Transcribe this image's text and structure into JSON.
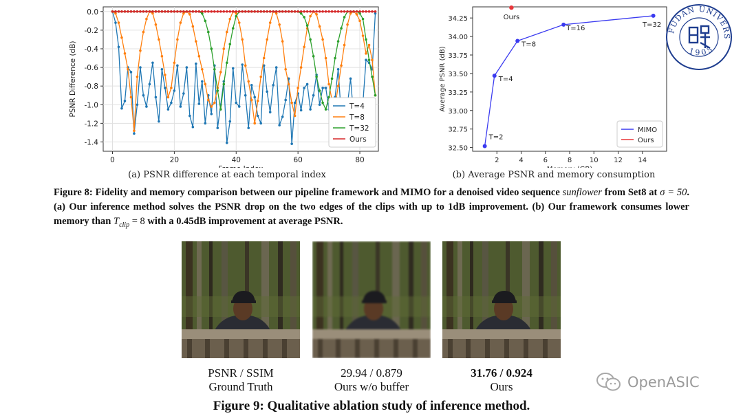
{
  "chart_data": [
    {
      "type": "line",
      "title": "",
      "xlabel": "Frame Index",
      "ylabel": "PSNR Difference (dB)",
      "xlim": [
        -3,
        86
      ],
      "ylim": [
        -1.5,
        0.05
      ],
      "xticks": [
        "0",
        "20",
        "40",
        "60",
        "80"
      ],
      "yticks": [
        "0.0",
        "-0.2",
        "-0.4",
        "-0.6",
        "-0.8",
        "-1.0",
        "-1.2",
        "-1.4"
      ],
      "grid": true,
      "legend": "bottom-right",
      "series": [
        {
          "name": "T=4",
          "color": "#1f77b4",
          "values": [
            0,
            -0.12,
            -0.38,
            -1.04,
            -0.96,
            -0.6,
            -0.65,
            -1.31,
            -1.0,
            -0.6,
            -0.9,
            -1.02,
            -0.78,
            -0.55,
            -0.92,
            -1.18,
            -0.62,
            -0.82,
            -1.05,
            -0.98,
            -0.85,
            -0.58,
            -1.02,
            -0.88,
            -0.6,
            -1.12,
            -1.24,
            -0.56,
            -0.99,
            -0.75,
            -1.2,
            -0.9,
            -1.1,
            -0.58,
            -1.25,
            -1.0,
            -0.75,
            -1.41,
            -1.18,
            -0.61,
            -0.98,
            -1.02,
            -0.57,
            -0.9,
            -1.25,
            -0.79,
            -0.92,
            -1.12,
            -1.2,
            -0.58,
            -0.86,
            -1.08,
            -0.79,
            -0.6,
            -1.22,
            -1.13,
            -0.95,
            -0.72,
            -1.42,
            -0.98,
            -0.88,
            -1.06,
            -0.82,
            -0.78,
            -1.05,
            -0.9,
            -0.68,
            -1.0,
            -0.82,
            -0.82,
            -1.05,
            -1.2,
            -0.92,
            -0.62,
            -1.12,
            -1.25,
            -1.0,
            -0.72,
            -1.12,
            -0.96,
            -1.2,
            -0.98,
            -0.52,
            -0.55,
            -0.62,
            -0.02
          ]
        },
        {
          "name": "T=8",
          "color": "#ff7f0e",
          "values": [
            0,
            -0.02,
            -0.12,
            -0.28,
            -0.45,
            -0.62,
            -0.92,
            -1.28,
            -0.7,
            -0.42,
            -0.22,
            -0.08,
            0,
            -0.02,
            -0.14,
            -0.3,
            -0.48,
            -0.68,
            -0.92,
            -0.82,
            -0.55,
            -0.3,
            -0.12,
            -0.02,
            0,
            -0.03,
            -0.16,
            -0.32,
            -0.48,
            -0.62,
            -0.78,
            -0.95,
            -1.02,
            -0.98,
            -0.82,
            -0.65,
            -0.4,
            -0.22,
            -0.08,
            0,
            -0.02,
            -0.12,
            -0.3,
            -0.58,
            -0.75,
            -0.95,
            -1.2,
            -0.96,
            -0.7,
            -0.5,
            -0.3,
            -0.12,
            0,
            -0.02,
            -0.14,
            -0.32,
            -0.62,
            -0.78,
            -0.98,
            -1.12,
            -0.82,
            -0.6,
            -0.38,
            -0.18,
            -0.05,
            0,
            -0.03,
            -0.16,
            -0.3,
            -0.5,
            -0.78,
            -0.95,
            -1.02,
            -0.8,
            -0.58,
            -0.36,
            -0.14,
            -0.02,
            0,
            -0.03,
            -0.1,
            -0.26,
            -0.45,
            -0.36,
            -0.52,
            -0.9
          ]
        },
        {
          "name": "T=32",
          "color": "#2ca02c",
          "values": [
            0,
            0,
            0,
            0,
            0,
            0,
            0,
            0,
            0,
            0,
            0,
            0,
            0,
            0,
            0,
            0,
            0,
            0,
            0,
            0,
            0,
            0,
            0,
            0,
            0,
            0,
            0,
            0,
            0,
            -0.02,
            -0.1,
            -0.22,
            -0.4,
            -0.62,
            -0.85,
            -1.05,
            -0.78,
            -0.55,
            -0.35,
            -0.18,
            -0.05,
            0,
            0,
            0,
            0,
            0,
            0,
            0,
            0,
            0,
            0,
            0,
            0,
            0,
            0,
            0,
            0,
            0,
            0,
            0,
            0,
            -0.02,
            -0.06,
            -0.15,
            -0.3,
            -0.48,
            -0.7,
            -0.85,
            -0.98,
            -1.05,
            -0.92,
            -0.72,
            -0.5,
            -0.32,
            -0.18,
            -0.06,
            0,
            0,
            0,
            0,
            -0.02,
            -0.08,
            -0.3,
            -0.52,
            -0.7,
            -0.9
          ]
        },
        {
          "name": "Ours",
          "color": "#d62728",
          "values": [
            0,
            0,
            0,
            0,
            0,
            0,
            0,
            0,
            0,
            0,
            0,
            0,
            0,
            0,
            0,
            0,
            0,
            0,
            0,
            0,
            0,
            0,
            0,
            0,
            0,
            0,
            0,
            0,
            0,
            0,
            0,
            0,
            0,
            0,
            0,
            0,
            0,
            0,
            0,
            0,
            0,
            0,
            0,
            0,
            0,
            0,
            0,
            0,
            0,
            0,
            0,
            0,
            0,
            0,
            0,
            0,
            0,
            0,
            0,
            0,
            0,
            0,
            0,
            0,
            0,
            0,
            0,
            0,
            0,
            0,
            0,
            0,
            0,
            0,
            0,
            0,
            0,
            0,
            0,
            0,
            0,
            0,
            0,
            0,
            0,
            0
          ]
        }
      ]
    },
    {
      "type": "line",
      "xlabel": "Memory (GB)",
      "ylabel": "Average PSNR (dB)",
      "xlim": [
        0,
        16
      ],
      "ylim": [
        32.45,
        34.4
      ],
      "xticks": [
        "2",
        "4",
        "6",
        "8",
        "10",
        "12",
        "14"
      ],
      "yticks": [
        "32.50",
        "32.75",
        "33.00",
        "33.25",
        "33.50",
        "33.75",
        "34.00",
        "34.25"
      ],
      "grid": false,
      "legend": "bottom-right",
      "series": [
        {
          "name": "MIMO",
          "color": "#3b3bf0",
          "points": [
            {
              "x": 1.0,
              "y": 32.52,
              "label": "T=2"
            },
            {
              "x": 1.8,
              "y": 33.47,
              "label": "T=4"
            },
            {
              "x": 3.7,
              "y": 33.94,
              "label": "T=8"
            },
            {
              "x": 7.5,
              "y": 34.16,
              "label": "T=16"
            },
            {
              "x": 14.9,
              "y": 34.28,
              "label": "T=32"
            }
          ]
        },
        {
          "name": "Ours",
          "color": "#e8363a",
          "points": [
            {
              "x": 3.2,
              "y": 34.39,
              "label": "Ours"
            }
          ]
        }
      ]
    }
  ],
  "captions": {
    "sub_a": "(a) PSNR difference at each temporal index",
    "sub_b": "(b) Average PSNR and memory consumption",
    "fig8_part1": "Figure 8: Fidelity and memory comparison between our pipeline framework and MIMO for a denoised video sequence ",
    "fig8_seq": "sunflower",
    "fig8_part2": " from Set8 at ",
    "fig8_sigma": "σ = 50",
    "fig8_part3": ". (a) Our inference method solves the PSNR drop on the two edges of the clips with up to 1dB improvement. (b) Our framework consumes lower memory than ",
    "fig8_tclip": "T",
    "fig8_tclip_sub": "clip",
    "fig8_eq": " = 8",
    "fig8_part4": " with a 0.45dB improvement at average PSNR.",
    "fig9": "Figure 9: Qualitative ablation study of inference method."
  },
  "photos": [
    {
      "metric": "PSNR / SSIM",
      "label": "Ground Truth"
    },
    {
      "metric": "29.94 / 0.879",
      "label": "Ours w/o buffer"
    },
    {
      "metric": "31.76 / 0.924",
      "label": "Ours"
    }
  ],
  "seal": {
    "text": "FUDAN UNIVERSITY",
    "year": "1905",
    "color": "#1e3d8f"
  },
  "watermark": {
    "text": "OpenASIC"
  }
}
